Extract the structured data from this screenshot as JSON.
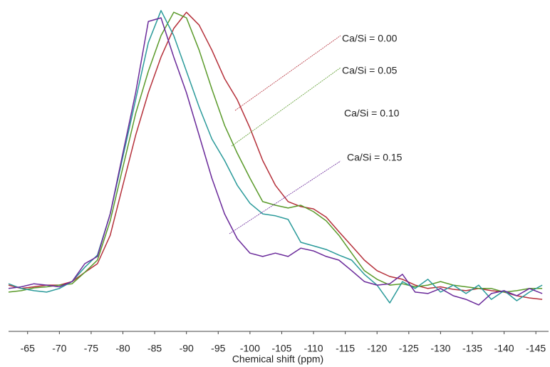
{
  "chart_data": {
    "type": "line",
    "xlabel": "Chemical shift (ppm)",
    "xlim": [
      -62,
      -147
    ],
    "ylim": [
      -15,
      104
    ],
    "xticks": [
      -65,
      -70,
      -75,
      -80,
      -85,
      -90,
      -95,
      -100,
      -105,
      -110,
      -115,
      -120,
      -125,
      -130,
      -135,
      -140,
      -145
    ],
    "x": [
      -62,
      -64,
      -66,
      -68,
      -70,
      -72,
      -74,
      -76,
      -78,
      -80,
      -82,
      -84,
      -86,
      -88,
      -90,
      -92,
      -94,
      -96,
      -98,
      -100,
      -102,
      -104,
      -106,
      -108,
      -110,
      -112,
      -114,
      -116,
      -118,
      -120,
      -122,
      -124,
      -126,
      -128,
      -130,
      -132,
      -134,
      -136,
      -138,
      -140,
      -142,
      -144,
      -146
    ],
    "series": [
      {
        "name": "Ca/Si = 0.00",
        "color": "#b5303a",
        "values": [
          1.6,
          0.4,
          1,
          1.6,
          1.6,
          2.9,
          6.2,
          9.3,
          19.5,
          37.5,
          55.4,
          70.7,
          83.5,
          93.8,
          99.6,
          95,
          86,
          75.8,
          68.2,
          58,
          46.4,
          37.5,
          31.6,
          29.8,
          29,
          26,
          20.8,
          15.7,
          10.6,
          6.8,
          4.7,
          3.7,
          1.6,
          0.4,
          1,
          0.1,
          -0.4,
          0.4,
          -0.4,
          -0.9,
          -2.2,
          -3,
          -3.5
        ]
      },
      {
        "name": "Ca/Si = 0.05",
        "color": "#5a9a2a",
        "values": [
          -0.9,
          -0.4,
          0.6,
          1,
          1.6,
          2.1,
          6.2,
          10.6,
          24.7,
          43.9,
          63.2,
          78.4,
          91.2,
          99.6,
          97.6,
          86,
          72,
          59,
          49,
          40,
          31.6,
          30.3,
          29.3,
          30.3,
          28,
          24.7,
          19.5,
          13.1,
          6.8,
          3.7,
          1.6,
          2.1,
          1,
          1.6,
          2.9,
          1.6,
          1,
          0.4,
          0.4,
          -0.9,
          -0.4,
          0.4,
          0.4
        ]
      },
      {
        "name": "Ca/Si = 0.10",
        "color": "#2a9a9a",
        "values": [
          2.1,
          0.4,
          -0.4,
          -0.9,
          0.4,
          2.9,
          8,
          12.4,
          27.2,
          47.7,
          68.2,
          88.7,
          100.2,
          91.2,
          78.4,
          65.6,
          54.1,
          46.4,
          37.5,
          31,
          27.2,
          26.5,
          25.2,
          17,
          15.7,
          14.4,
          12.4,
          10.6,
          5.5,
          1.6,
          -4.8,
          2.9,
          0.4,
          3.7,
          -0.9,
          1.6,
          -1.4,
          1.6,
          -3.5,
          -0.4,
          -4,
          -0.9,
          1.6
        ]
      },
      {
        "name": "Ca/Si = 0.15",
        "color": "#6a2a9a",
        "values": [
          0.4,
          1,
          2.1,
          1.6,
          1,
          2.9,
          9.3,
          11.9,
          27.2,
          49,
          70.7,
          96.3,
          97.6,
          83.5,
          70.7,
          55.4,
          40,
          27.2,
          18.3,
          13.1,
          11.9,
          13.1,
          11.9,
          14.9,
          13.9,
          11.9,
          10.6,
          6.8,
          2.9,
          1.6,
          2.1,
          5.5,
          -0.9,
          -1.4,
          0.4,
          -2.2,
          -3.5,
          -5.5,
          -1.4,
          -0.4,
          -2.2,
          0.4,
          -1.4
        ]
      }
    ]
  }
}
